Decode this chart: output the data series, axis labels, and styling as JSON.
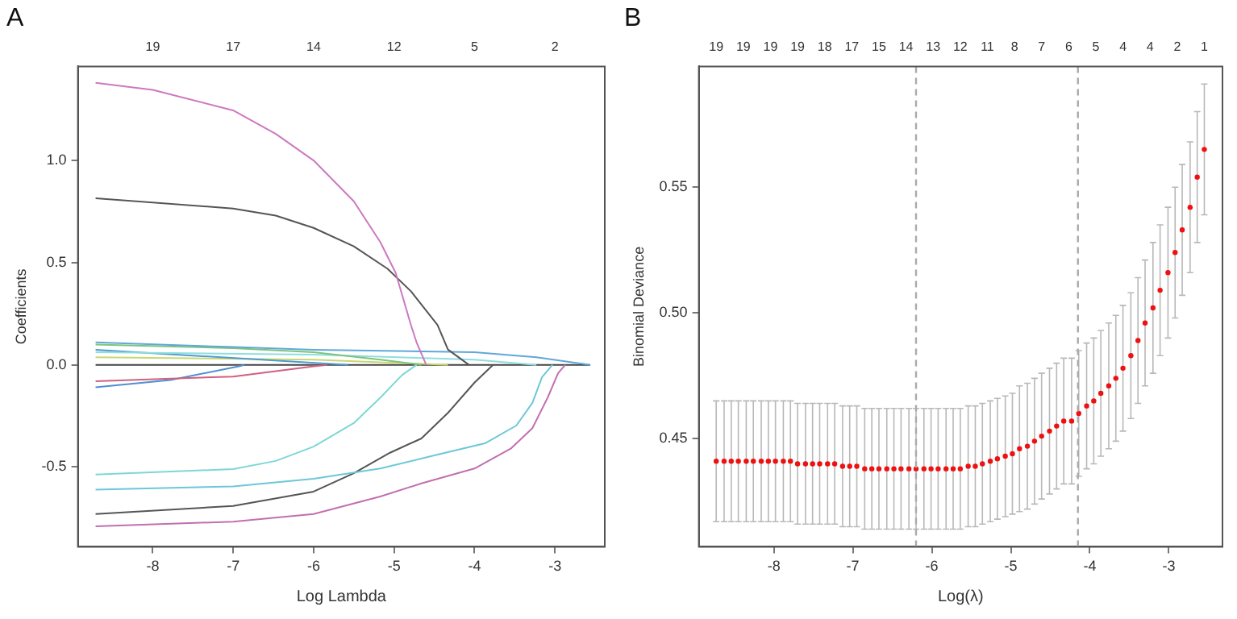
{
  "chart_data": [
    {
      "type": "line",
      "title": "A",
      "xlabel": "Log Lambda",
      "ylabel": "Coefficients",
      "grid": false,
      "legend": false,
      "marker": "none",
      "line_style": "solid",
      "xlim": [
        -8.93,
        -2.38
      ],
      "ylim": [
        -0.89,
        1.46
      ],
      "xticks": [
        -8,
        -7,
        -6,
        -5,
        -4,
        -3
      ],
      "yticks": [
        -0.5,
        {
          "value": 0,
          "label": "0.0"
        },
        0.5,
        {
          "value": 1,
          "label": "1.0"
        }
      ],
      "annotations": [
        "19",
        "17",
        "14",
        "12",
        "5",
        "2"
      ],
      "series": [
        {
          "color": "#cc79c0",
          "x": [
            -8.71,
            -8,
            -7,
            -6.47,
            -6,
            -5.5,
            -5.17,
            -4.98,
            -4.79,
            -4.72,
            -4.6
          ],
          "values": [
            1.38,
            1.345,
            1.245,
            1.13,
            1.0,
            0.8,
            0.6,
            0.45,
            0.195,
            0.11,
            0
          ]
        },
        {
          "color": "#555555",
          "x": [
            -8.71,
            -7,
            -6.47,
            -6,
            -5.5,
            -5.08,
            -4.79,
            -4.46,
            -4.33,
            -4.07
          ],
          "values": [
            0.815,
            0.765,
            0.73,
            0.67,
            0.58,
            0.47,
            0.36,
            0.195,
            0.075,
            0
          ]
        },
        {
          "color": "#7fd6d6",
          "x": [
            -8.71,
            -7,
            -6.47,
            -6,
            -5.5,
            -5.17,
            -4.9,
            -4.72
          ],
          "values": [
            -0.537,
            -0.51,
            -0.47,
            -0.4,
            -0.285,
            -0.16,
            -0.05,
            0
          ]
        },
        {
          "color": "#6cc8d8",
          "x": [
            -8.71,
            -7,
            -6,
            -5.17,
            -4.52,
            -3.87,
            -3.48,
            -3.28,
            -3.16,
            -3.03
          ],
          "values": [
            -0.61,
            -0.595,
            -0.557,
            -0.507,
            -0.445,
            -0.384,
            -0.297,
            -0.186,
            -0.06,
            0
          ]
        },
        {
          "color": "#555555",
          "x": [
            -8.71,
            -7,
            -6,
            -5.5,
            -5.05,
            -4.66,
            -4.33,
            -4,
            -3.77
          ],
          "values": [
            -0.73,
            -0.69,
            -0.62,
            -0.53,
            -0.43,
            -0.36,
            -0.235,
            -0.087,
            0
          ]
        },
        {
          "color": "#c070b0",
          "x": [
            -8.71,
            -7,
            -6,
            -5.17,
            -4.66,
            -4,
            -3.55,
            -3.28,
            -3.09,
            -2.96,
            -2.87
          ],
          "values": [
            -0.79,
            -0.767,
            -0.73,
            -0.644,
            -0.58,
            -0.507,
            -0.41,
            -0.31,
            -0.16,
            -0.04,
            0
          ]
        },
        {
          "color": "#5fa8d8",
          "x": [
            -8.71,
            -7,
            -6,
            -4,
            -3.23,
            -2.56
          ],
          "values": [
            0.11,
            0.087,
            0.074,
            0.062,
            0.037,
            0
          ]
        },
        {
          "color": "#7cc47c",
          "x": [
            -8.71,
            -7,
            -6,
            -5.17,
            -4.66
          ],
          "values": [
            0.099,
            0.082,
            0.062,
            0.025,
            0
          ]
        },
        {
          "color": "#8fdede",
          "x": [
            -8.71,
            -6,
            -4,
            -3.23
          ],
          "values": [
            0.062,
            0.05,
            0.025,
            0
          ]
        },
        {
          "color": "#4f9ad0",
          "x": [
            -8.71,
            -5.57
          ],
          "values": [
            0.074,
            0
          ]
        },
        {
          "color": "#c8d870",
          "x": [
            -8.71,
            -6,
            -4.33
          ],
          "values": [
            0.037,
            0.025,
            0
          ]
        },
        {
          "color": "#d06080",
          "x": [
            -8.71,
            -7,
            -6,
            -5.83
          ],
          "values": [
            -0.08,
            -0.057,
            -0.007,
            0
          ]
        },
        {
          "color": "#4f8fd0",
          "x": [
            -8.71,
            -7.78,
            -6.93,
            -6.86
          ],
          "values": [
            -0.11,
            -0.074,
            -0.007,
            0
          ]
        },
        {
          "color": "#444444",
          "x": [
            -8.71,
            -2.56
          ],
          "values": [
            0,
            0
          ]
        }
      ]
    },
    {
      "type": "scatter",
      "title": "B",
      "xlabel": "Log(λ)",
      "ylabel": "Binomial Deviance",
      "grid": false,
      "legend": false,
      "marker": "circle",
      "xlim": [
        -8.95,
        -2.32
      ],
      "ylim": [
        0.407,
        0.598
      ],
      "xticks": [
        -8,
        -7,
        -6,
        -5,
        -4,
        -3
      ],
      "yticks": [
        0.45,
        {
          "value": 0.5,
          "label": "0.50"
        },
        0.55
      ],
      "annotations": [
        "19",
        "19",
        "19",
        "19",
        "18",
        "17",
        "15",
        "14",
        "13",
        "12",
        "11",
        "8",
        "7",
        "6",
        "5",
        "4",
        "4",
        "2",
        "1"
      ],
      "ref_lines": [
        {
          "axis": "x",
          "value": -6.2,
          "color": "#aaaaaa",
          "line_style": "dashed"
        },
        {
          "axis": "x",
          "value": -4.15,
          "color": "#aaaaaa",
          "line_style": "dashed"
        }
      ],
      "series": [
        {
          "color": "#ee1111",
          "x": [
            -8.73,
            -8.63,
            -8.54,
            -8.45,
            -8.35,
            -8.26,
            -8.16,
            -8.07,
            -7.98,
            -7.88,
            -7.79,
            -7.7,
            -7.6,
            -7.51,
            -7.42,
            -7.32,
            -7.23,
            -7.13,
            -7.04,
            -6.95,
            -6.85,
            -6.76,
            -6.67,
            -6.57,
            -6.48,
            -6.39,
            -6.29,
            -6.2,
            -6.1,
            -6.01,
            -5.92,
            -5.82,
            -5.73,
            -5.64,
            -5.54,
            -5.45,
            -5.36,
            -5.26,
            -5.17,
            -5.07,
            -4.98,
            -4.89,
            -4.79,
            -4.7,
            -4.61,
            -4.51,
            -4.42,
            -4.33,
            -4.23,
            -4.14,
            -4.04,
            -3.95,
            -3.86,
            -3.76,
            -3.67,
            -3.58,
            -3.48,
            -3.39,
            -3.3,
            -3.2,
            -3.11,
            -3.01,
            -2.92,
            -2.83,
            -2.73,
            -2.64,
            -2.55
          ],
          "values": [
            0.441,
            0.441,
            0.441,
            0.441,
            0.441,
            0.441,
            0.441,
            0.441,
            0.441,
            0.441,
            0.441,
            0.44,
            0.44,
            0.44,
            0.44,
            0.44,
            0.44,
            0.439,
            0.439,
            0.439,
            0.438,
            0.438,
            0.438,
            0.438,
            0.438,
            0.438,
            0.438,
            0.438,
            0.438,
            0.438,
            0.438,
            0.438,
            0.438,
            0.438,
            0.439,
            0.439,
            0.44,
            0.441,
            0.442,
            0.443,
            0.444,
            0.446,
            0.447,
            0.449,
            0.451,
            0.453,
            0.455,
            0.457,
            0.457,
            0.46,
            0.463,
            0.465,
            0.468,
            0.471,
            0.474,
            0.478,
            0.483,
            0.489,
            0.496,
            0.502,
            0.509,
            0.516,
            0.524,
            0.533,
            0.542,
            0.554,
            0.565
          ],
          "errors": [
            0.024,
            0.024,
            0.024,
            0.024,
            0.024,
            0.024,
            0.024,
            0.024,
            0.024,
            0.024,
            0.024,
            0.024,
            0.024,
            0.024,
            0.024,
            0.024,
            0.024,
            0.024,
            0.024,
            0.024,
            0.024,
            0.024,
            0.024,
            0.024,
            0.024,
            0.024,
            0.024,
            0.024,
            0.024,
            0.024,
            0.024,
            0.024,
            0.024,
            0.024,
            0.024,
            0.024,
            0.024,
            0.024,
            0.024,
            0.024,
            0.024,
            0.025,
            0.025,
            0.025,
            0.025,
            0.025,
            0.025,
            0.025,
            0.025,
            0.025,
            0.025,
            0.025,
            0.025,
            0.025,
            0.025,
            0.025,
            0.025,
            0.025,
            0.025,
            0.026,
            0.026,
            0.026,
            0.026,
            0.026,
            0.026,
            0.026,
            0.026
          ]
        }
      ]
    }
  ]
}
